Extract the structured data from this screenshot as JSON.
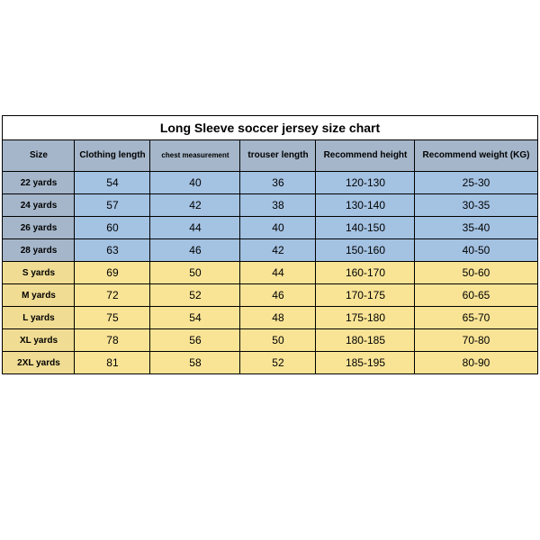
{
  "title": "Long Sleeve soccer jersey size chart",
  "columns": [
    "Size",
    "Clothing length",
    "chest measurement",
    "trouser length",
    "Recommend height",
    "Recommend weight (KG)"
  ],
  "colors": {
    "border": "#000000",
    "title_bg": "#ffffff",
    "header_bg": "#a5b6ca",
    "kid_row_bg": "#a4c2e2",
    "kid_size_bg": "#a5b6ca",
    "adult_row_bg": "#f9e496",
    "adult_size_bg": "#f0dc93"
  },
  "rows": [
    {
      "group": "kid",
      "cells": [
        "22 yards",
        "54",
        "40",
        "36",
        "120-130",
        "25-30"
      ]
    },
    {
      "group": "kid",
      "cells": [
        "24 yards",
        "57",
        "42",
        "38",
        "130-140",
        "30-35"
      ]
    },
    {
      "group": "kid",
      "cells": [
        "26 yards",
        "60",
        "44",
        "40",
        "140-150",
        "35-40"
      ]
    },
    {
      "group": "kid",
      "cells": [
        "28 yards",
        "63",
        "46",
        "42",
        "150-160",
        "40-50"
      ]
    },
    {
      "group": "adult",
      "cells": [
        "S yards",
        "69",
        "50",
        "44",
        "160-170",
        "50-60"
      ]
    },
    {
      "group": "adult",
      "cells": [
        "M yards",
        "72",
        "52",
        "46",
        "170-175",
        "60-65"
      ]
    },
    {
      "group": "adult",
      "cells": [
        "L yards",
        "75",
        "54",
        "48",
        "175-180",
        "65-70"
      ]
    },
    {
      "group": "adult",
      "cells": [
        "XL yards",
        "78",
        "56",
        "50",
        "180-185",
        "70-80"
      ]
    },
    {
      "group": "adult",
      "cells": [
        "2XL yards",
        "81",
        "58",
        "52",
        "185-195",
        "80-90"
      ]
    }
  ]
}
